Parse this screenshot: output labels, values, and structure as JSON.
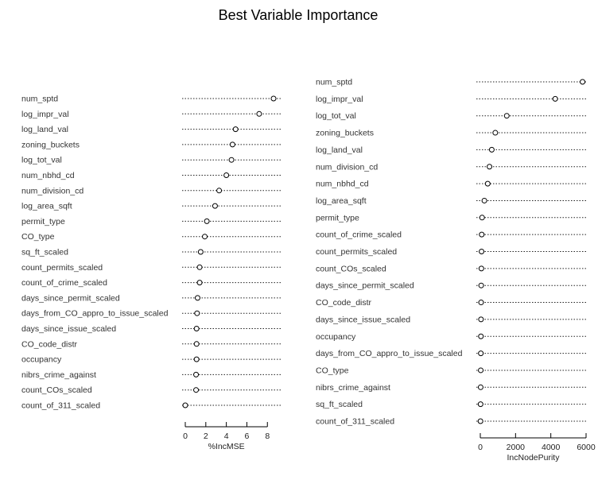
{
  "title": "Best Variable Importance",
  "chart_data": [
    {
      "type": "dotchart",
      "xlabel": "%IncMSE",
      "xlim": [
        0,
        8.6
      ],
      "xticks": [
        0,
        2,
        4,
        6,
        8
      ],
      "categories": [
        "num_sptd",
        "log_impr_val",
        "log_land_val",
        "zoning_buckets",
        "log_tot_val",
        "num_nbhd_cd",
        "num_division_cd",
        "log_area_sqft",
        "permit_type",
        "CO_type",
        "sq_ft_scaled",
        "count_permits_scaled",
        "count_of_crime_scaled",
        "days_since_permit_scaled",
        "days_from_CO_appro_to_issue_scaled",
        "days_since_issue_scaled",
        "CO_code_distr",
        "occupancy",
        "nibrs_crime_against",
        "count_COs_scaled",
        "count_of_311_scaled"
      ],
      "values": [
        8.6,
        7.2,
        4.9,
        4.6,
        4.5,
        4.0,
        3.3,
        2.9,
        2.1,
        1.9,
        1.5,
        1.4,
        1.4,
        1.2,
        1.15,
        1.1,
        1.1,
        1.1,
        1.05,
        1.05,
        0.0
      ]
    },
    {
      "type": "dotchart",
      "xlabel": "IncNodePurity",
      "xlim": [
        0,
        6000
      ],
      "xticks": [
        0,
        2000,
        4000,
        6000
      ],
      "categories": [
        "num_sptd",
        "log_impr_val",
        "log_tot_val",
        "zoning_buckets",
        "log_land_val",
        "num_division_cd",
        "num_nbhd_cd",
        "log_area_sqft",
        "permit_type",
        "count_of_crime_scaled",
        "count_permits_scaled",
        "count_COs_scaled",
        "days_since_permit_scaled",
        "CO_code_distr",
        "days_since_issue_scaled",
        "occupancy",
        "days_from_CO_appro_to_issue_scaled",
        "CO_type",
        "nibrs_crime_against",
        "sq_ft_scaled",
        "count_of_311_scaled"
      ],
      "values": [
        5800,
        4250,
        1500,
        850,
        650,
        520,
        420,
        230,
        100,
        80,
        70,
        60,
        50,
        45,
        40,
        35,
        30,
        25,
        20,
        15,
        10
      ]
    }
  ]
}
